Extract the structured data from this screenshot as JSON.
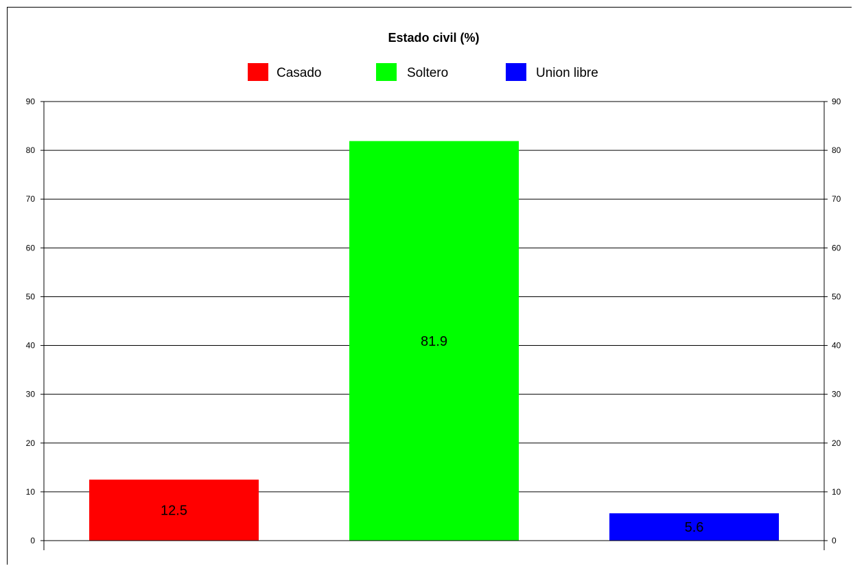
{
  "chart_data": {
    "type": "bar",
    "title": "Estado civil (%)",
    "categories": [
      "Casado",
      "Soltero",
      "Union libre"
    ],
    "values": [
      12.5,
      81.9,
      5.6
    ],
    "data_labels": [
      "12.5",
      "81.9",
      "5.6"
    ],
    "colors": [
      "#ff0000",
      "#00ff00",
      "#0000ff"
    ],
    "ylim": [
      0,
      90
    ],
    "yticks": [
      0,
      10,
      20,
      30,
      40,
      50,
      60,
      70,
      80,
      90
    ],
    "secondary_axis": true,
    "grid": true,
    "legend": "top-center",
    "xlabel": "",
    "ylabel": ""
  }
}
